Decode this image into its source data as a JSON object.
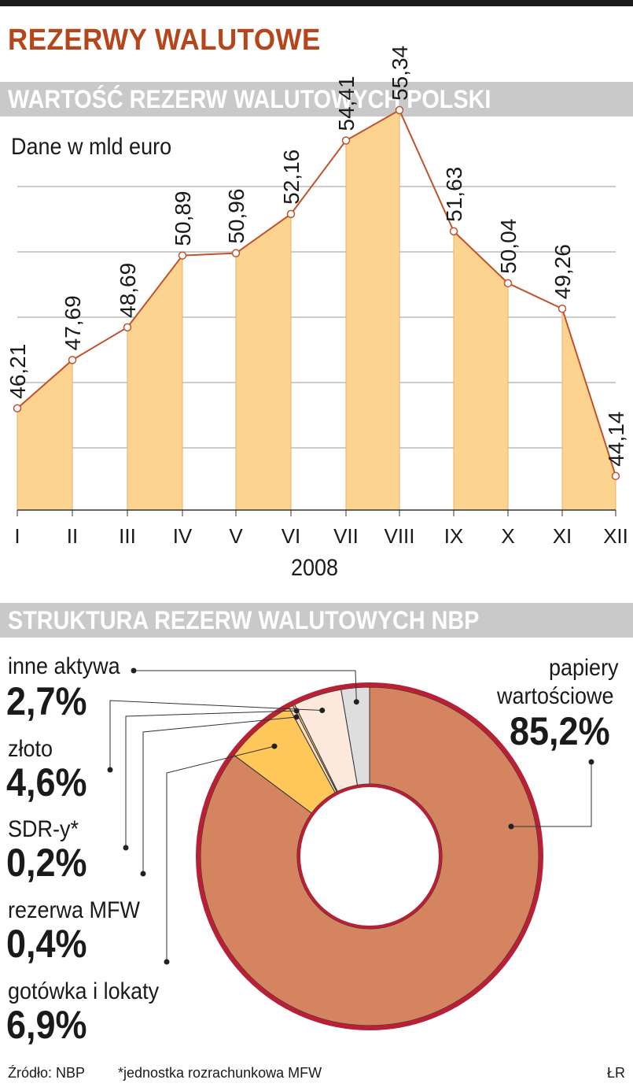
{
  "header": {
    "title": "REZERWY WALUTOWE"
  },
  "chart_data": [
    {
      "type": "area",
      "title": "WARTOŚĆ REZERW WALUTOWYCH POLSKI",
      "subtitle": "Dane w mld euro",
      "xlabel": "2008",
      "categories": [
        "I",
        "II",
        "III",
        "IV",
        "V",
        "VI",
        "VII",
        "VIII",
        "IX",
        "X",
        "XI",
        "XII"
      ],
      "values": [
        46.21,
        47.69,
        48.69,
        50.89,
        50.96,
        52.16,
        54.41,
        55.34,
        51.63,
        50.04,
        49.26,
        44.14
      ],
      "value_labels": [
        "46,21",
        "47,69",
        "48,69",
        "50,89",
        "50,96",
        "52,16",
        "54,41",
        "55,34",
        "51,63",
        "50,04",
        "49,26",
        "44,14"
      ],
      "ylim": [
        43,
        56
      ],
      "grid": [
        45,
        47,
        49,
        51,
        53
      ],
      "colors": {
        "fill": "#fcd490",
        "line": "#c0522e",
        "grid": "#999999"
      }
    },
    {
      "type": "pie",
      "title": "STRUKTURA REZERW WALUTOWYCH NBP",
      "slices": [
        {
          "name": "papiery wartościowe",
          "value": 85.2,
          "label": "85,2%",
          "color": "#d4855f"
        },
        {
          "name": "gotówka i lokaty",
          "value": 6.9,
          "label": "6,9%",
          "color": "#ffc659"
        },
        {
          "name": "rezerwa MFW",
          "value": 0.4,
          "label": "0,4%",
          "color": "#fde0bb"
        },
        {
          "name": "SDR-y*",
          "value": 0.2,
          "label": "0,2%",
          "color": "#f7c48d"
        },
        {
          "name": "złoto",
          "value": 4.6,
          "label": "4,6%",
          "color": "#fde9dc"
        },
        {
          "name": "inne aktywa",
          "value": 2.7,
          "label": "2,7%",
          "color": "#dedede"
        }
      ],
      "colors": {
        "ring": "#b82036"
      }
    }
  ],
  "footer": {
    "source": "Źródło: NBP",
    "footnote": "*jednostka rozrachunkowa MFW",
    "author": "ŁR"
  }
}
